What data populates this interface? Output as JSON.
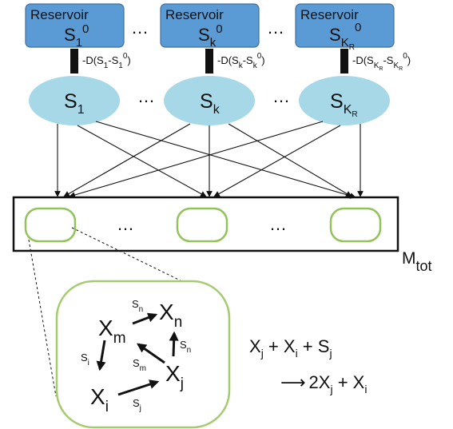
{
  "reservoirs": {
    "label": "Reservoir",
    "items": [
      {
        "sym": "S",
        "sub": "1",
        "sup": "0"
      },
      {
        "sym": "S",
        "sub": "k",
        "sup": "0"
      },
      {
        "sym": "S",
        "sub": "K",
        "subsub": "R",
        "sup": "0"
      }
    ]
  },
  "couplings": [
    {
      "pre": "-D(S",
      "sub1": "1",
      "mid": "-S",
      "sub2": "1",
      "sup": "0",
      "post": ")"
    },
    {
      "pre": "-D(S",
      "sub1": "k",
      "mid": "-S",
      "sub2": "k",
      "sup": "0",
      "post": ")"
    },
    {
      "pre": "-D(S",
      "sub1": "K",
      "subsub1": "R",
      "mid": "-S",
      "sub2": "K",
      "subsub2": "R",
      "sup": "0",
      "post": ")"
    }
  ],
  "nodes": [
    {
      "sym": "S",
      "sub": "1"
    },
    {
      "sym": "S",
      "sub": "k"
    },
    {
      "sym": "S",
      "sub": "K",
      "subsub": "R"
    }
  ],
  "ellipsis": "…",
  "mtot": {
    "sym": "M",
    "sub": "tot"
  },
  "network": {
    "species": [
      {
        "sym": "X",
        "sub": "m"
      },
      {
        "sym": "X",
        "sub": "n"
      },
      {
        "sym": "X",
        "sub": "j"
      },
      {
        "sym": "X",
        "sub": "i"
      }
    ],
    "signals": [
      {
        "sym": "S",
        "sub": "n"
      },
      {
        "sym": "S",
        "sub": "n"
      },
      {
        "sym": "S",
        "sub": "m"
      },
      {
        "sym": "S",
        "sub": "i"
      },
      {
        "sym": "S",
        "sub": "j"
      }
    ]
  },
  "equation": {
    "lhs": [
      {
        "sym": "X",
        "sub": "j"
      },
      {
        "sym": " + X",
        "sub": "i"
      },
      {
        "sym": " + S",
        "sub": "j"
      }
    ],
    "arrow": "⟶",
    "rhs": [
      {
        "sym": "2X",
        "sub": "j"
      },
      {
        "sym": " + X",
        "sub": "i"
      }
    ]
  }
}
